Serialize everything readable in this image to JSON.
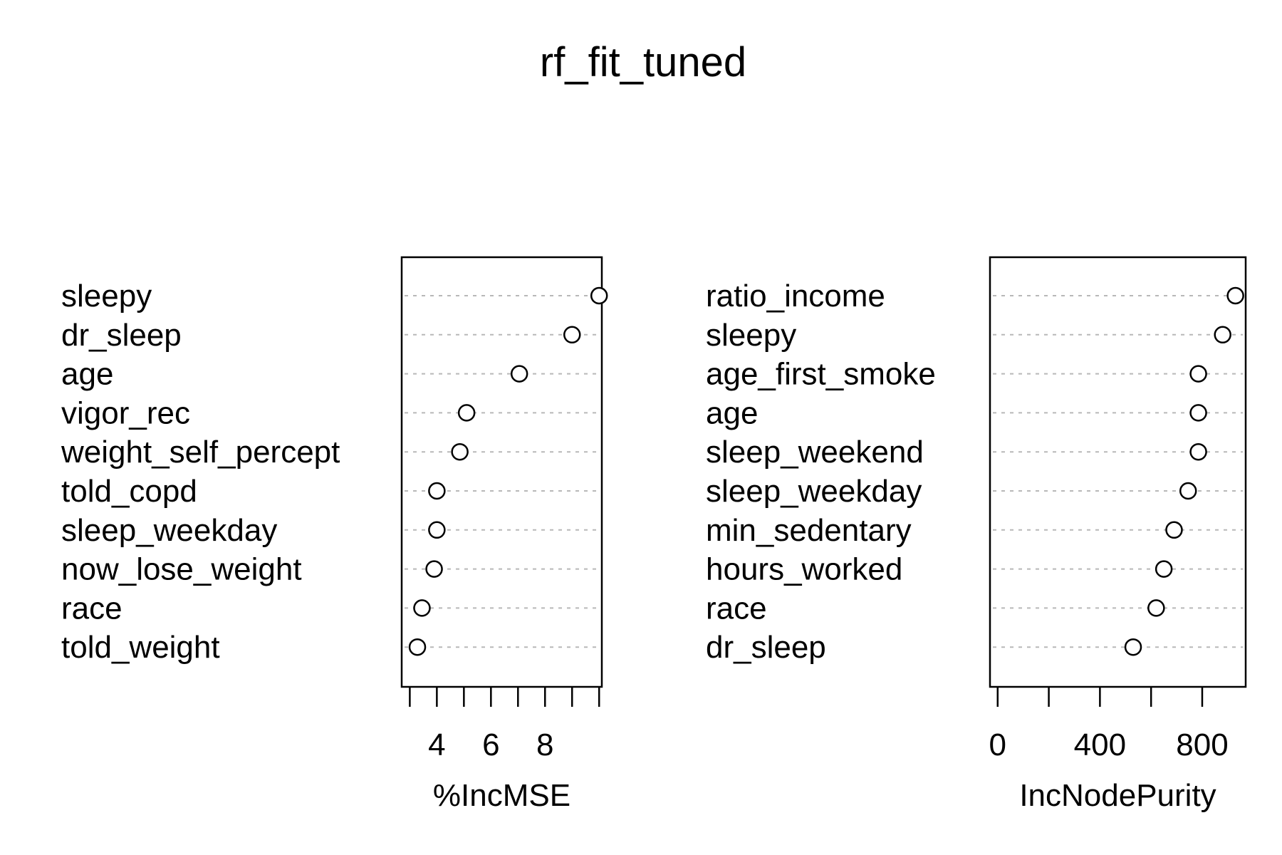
{
  "chart_data": {
    "type": "scatter",
    "title": "rf_fit_tuned",
    "panels": [
      {
        "xlabel": "%IncMSE",
        "xlim": [
          2.7,
          10.1
        ],
        "ticks": [
          3,
          4,
          5,
          6,
          7,
          8,
          9,
          10
        ],
        "tick_labels": [
          "4",
          "6",
          "8"
        ],
        "tick_label_values": [
          4,
          6,
          8
        ],
        "categories": [
          "sleepy",
          "dr_sleep",
          "age",
          "vigor_rec",
          "weight_self_percept",
          "told_copd",
          "sleep_weekday",
          "now_lose_weight",
          "race",
          "told_weight"
        ],
        "values": [
          10.0,
          9.0,
          7.05,
          5.1,
          4.85,
          4.0,
          4.0,
          3.9,
          3.45,
          3.28
        ]
      },
      {
        "xlabel": "IncNodePurity",
        "xlim": [
          -30,
          970
        ],
        "ticks": [
          0,
          200,
          400,
          600,
          800
        ],
        "tick_labels": [
          "0",
          "400",
          "800"
        ],
        "tick_label_values": [
          0,
          400,
          800
        ],
        "categories": [
          "ratio_income",
          "sleepy",
          "age_first_smoke",
          "age",
          "sleep_weekend",
          "sleep_weekday",
          "min_sedentary",
          "hours_worked",
          "race",
          "dr_sleep"
        ],
        "values": [
          930,
          880,
          785,
          785,
          785,
          745,
          690,
          650,
          620,
          530
        ]
      }
    ]
  }
}
